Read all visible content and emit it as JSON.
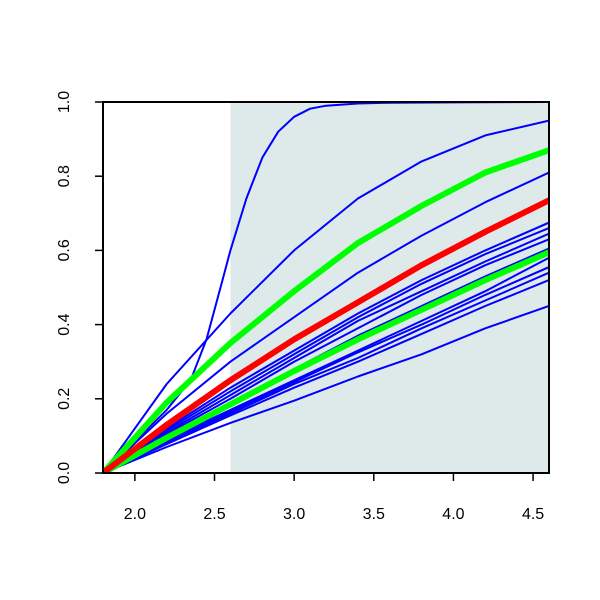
{
  "chart_data": {
    "type": "line",
    "title": "",
    "xlabel": "",
    "ylabel": "",
    "xlim": [
      1.8,
      4.6
    ],
    "ylim": [
      0,
      1
    ],
    "x_ticks": [
      "2.0",
      "2.5",
      "3.0",
      "3.5",
      "4.0",
      "4.5"
    ],
    "y_ticks": [
      "0.0",
      "0.2",
      "0.4",
      "0.6",
      "0.8",
      "1.0"
    ],
    "grid": false,
    "shaded_region": {
      "x_from": 2.6,
      "x_to": 4.6,
      "color": "#deeaea"
    },
    "colors": {
      "thin": "#0000ff",
      "highlight_green": "#00ff00",
      "highlight_red": "#ff0000"
    },
    "series": [
      {
        "color_key": "thin",
        "x": [
          1.8,
          2.2,
          2.35,
          2.45,
          2.55,
          2.6,
          2.7,
          2.8,
          2.9,
          3.0,
          3.1,
          3.2,
          3.4,
          3.6,
          4.0,
          4.6
        ],
        "y": [
          0,
          0.17,
          0.25,
          0.36,
          0.52,
          0.6,
          0.74,
          0.85,
          0.92,
          0.96,
          0.982,
          0.99,
          0.996,
          0.998,
          0.999,
          1.0
        ]
      },
      {
        "color_key": "thin",
        "x": [
          1.8,
          2.2,
          2.6,
          3.0,
          3.4,
          3.8,
          4.2,
          4.6
        ],
        "y": [
          0,
          0.24,
          0.43,
          0.6,
          0.74,
          0.84,
          0.91,
          0.95
        ]
      },
      {
        "color_key": "highlight_green",
        "thick": true,
        "x": [
          1.8,
          2.2,
          2.6,
          3.0,
          3.4,
          3.8,
          4.2,
          4.6
        ],
        "y": [
          0,
          0.19,
          0.35,
          0.49,
          0.62,
          0.72,
          0.81,
          0.87
        ]
      },
      {
        "color_key": "thin",
        "x": [
          1.8,
          2.2,
          2.6,
          3.0,
          3.4,
          3.8,
          4.2,
          4.6
        ],
        "y": [
          0,
          0.16,
          0.3,
          0.42,
          0.54,
          0.64,
          0.73,
          0.81
        ]
      },
      {
        "color_key": "highlight_red",
        "thick": true,
        "x": [
          1.8,
          2.2,
          2.6,
          3.0,
          3.4,
          3.8,
          4.2,
          4.6
        ],
        "y": [
          0,
          0.13,
          0.25,
          0.36,
          0.46,
          0.56,
          0.65,
          0.735
        ]
      },
      {
        "color_key": "thin",
        "x": [
          1.8,
          2.2,
          2.6,
          3.0,
          3.4,
          3.8,
          4.2,
          4.6
        ],
        "y": [
          0,
          0.12,
          0.23,
          0.33,
          0.43,
          0.52,
          0.6,
          0.675
        ]
      },
      {
        "color_key": "thin",
        "x": [
          1.8,
          2.2,
          2.6,
          3.0,
          3.4,
          3.8,
          4.2,
          4.6
        ],
        "y": [
          0,
          0.115,
          0.22,
          0.32,
          0.42,
          0.51,
          0.59,
          0.66
        ]
      },
      {
        "color_key": "thin",
        "x": [
          1.8,
          2.2,
          2.6,
          3.0,
          3.4,
          3.8,
          4.2,
          4.6
        ],
        "y": [
          0,
          0.11,
          0.21,
          0.31,
          0.41,
          0.49,
          0.57,
          0.645
        ]
      },
      {
        "color_key": "thin",
        "x": [
          1.8,
          2.2,
          2.6,
          3.0,
          3.4,
          3.8,
          4.2,
          4.6
        ],
        "y": [
          0,
          0.105,
          0.2,
          0.3,
          0.39,
          0.48,
          0.56,
          0.63
        ]
      },
      {
        "color_key": "thin",
        "x": [
          1.8,
          2.2,
          2.6,
          3.0,
          3.4,
          3.8,
          4.2,
          4.6
        ],
        "y": [
          0,
          0.1,
          0.19,
          0.28,
          0.37,
          0.45,
          0.53,
          0.605
        ]
      },
      {
        "color_key": "highlight_green",
        "thick": true,
        "x": [
          1.8,
          2.2,
          2.6,
          3.0,
          3.4,
          3.8,
          4.2,
          4.6
        ],
        "y": [
          0,
          0.095,
          0.185,
          0.275,
          0.36,
          0.44,
          0.52,
          0.595
        ]
      },
      {
        "color_key": "thin",
        "x": [
          1.8,
          2.2,
          2.6,
          3.0,
          3.4,
          3.8,
          4.2,
          4.6
        ],
        "y": [
          0,
          0.09,
          0.17,
          0.25,
          0.33,
          0.41,
          0.49,
          0.58
        ]
      },
      {
        "color_key": "thin",
        "x": [
          1.8,
          2.2,
          2.6,
          3.0,
          3.4,
          3.8,
          4.2,
          4.6
        ],
        "y": [
          0,
          0.085,
          0.165,
          0.245,
          0.325,
          0.4,
          0.48,
          0.555
        ]
      },
      {
        "color_key": "thin",
        "x": [
          1.8,
          2.2,
          2.6,
          3.0,
          3.4,
          3.8,
          4.2,
          4.6
        ],
        "y": [
          0,
          0.08,
          0.16,
          0.24,
          0.31,
          0.39,
          0.465,
          0.54
        ]
      },
      {
        "color_key": "thin",
        "x": [
          1.8,
          2.2,
          2.6,
          3.0,
          3.4,
          3.8,
          4.2,
          4.6
        ],
        "y": [
          0,
          0.078,
          0.155,
          0.23,
          0.3,
          0.375,
          0.45,
          0.52
        ]
      },
      {
        "color_key": "thin",
        "x": [
          1.8,
          2.2,
          2.6,
          3.0,
          3.4,
          3.8,
          4.2,
          4.6
        ],
        "y": [
          0,
          0.07,
          0.135,
          0.195,
          0.26,
          0.32,
          0.39,
          0.45
        ]
      }
    ]
  }
}
